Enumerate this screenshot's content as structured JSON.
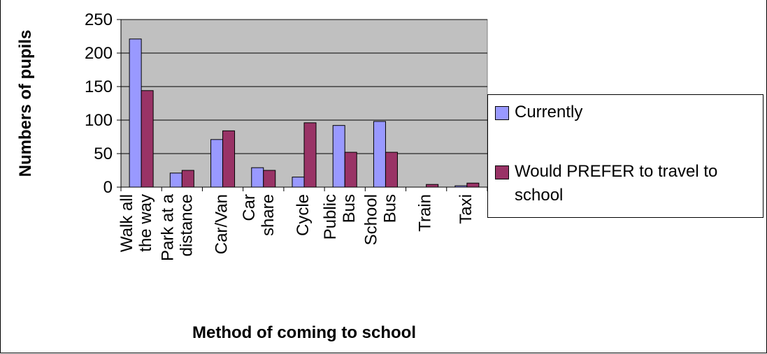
{
  "chart_data": {
    "type": "bar",
    "title": "",
    "xlabel": "Method of coming to school",
    "ylabel": "Numbers of pupils",
    "ylim": [
      0,
      250
    ],
    "yticks": [
      0,
      50,
      100,
      150,
      200,
      250
    ],
    "grid": true,
    "legend_position": "right",
    "categories": [
      [
        "Walk all",
        "the way"
      ],
      [
        "Park at a",
        "distance"
      ],
      [
        "Car/Van"
      ],
      [
        "Car",
        "share"
      ],
      [
        "Cycle"
      ],
      [
        "Public",
        "Bus"
      ],
      [
        "School",
        "Bus"
      ],
      [
        "Train"
      ],
      [
        "Taxi"
      ]
    ],
    "series": [
      {
        "name": "Currently",
        "color": "#9999ff",
        "values": [
          221,
          21,
          71,
          29,
          15,
          92,
          98,
          0,
          2
        ]
      },
      {
        "name": "Would PREFER to travel to school",
        "color": "#993366",
        "values": [
          144,
          25,
          84,
          25,
          96,
          52,
          52,
          4,
          6
        ]
      }
    ],
    "plot_background": "#c0c0c0"
  }
}
